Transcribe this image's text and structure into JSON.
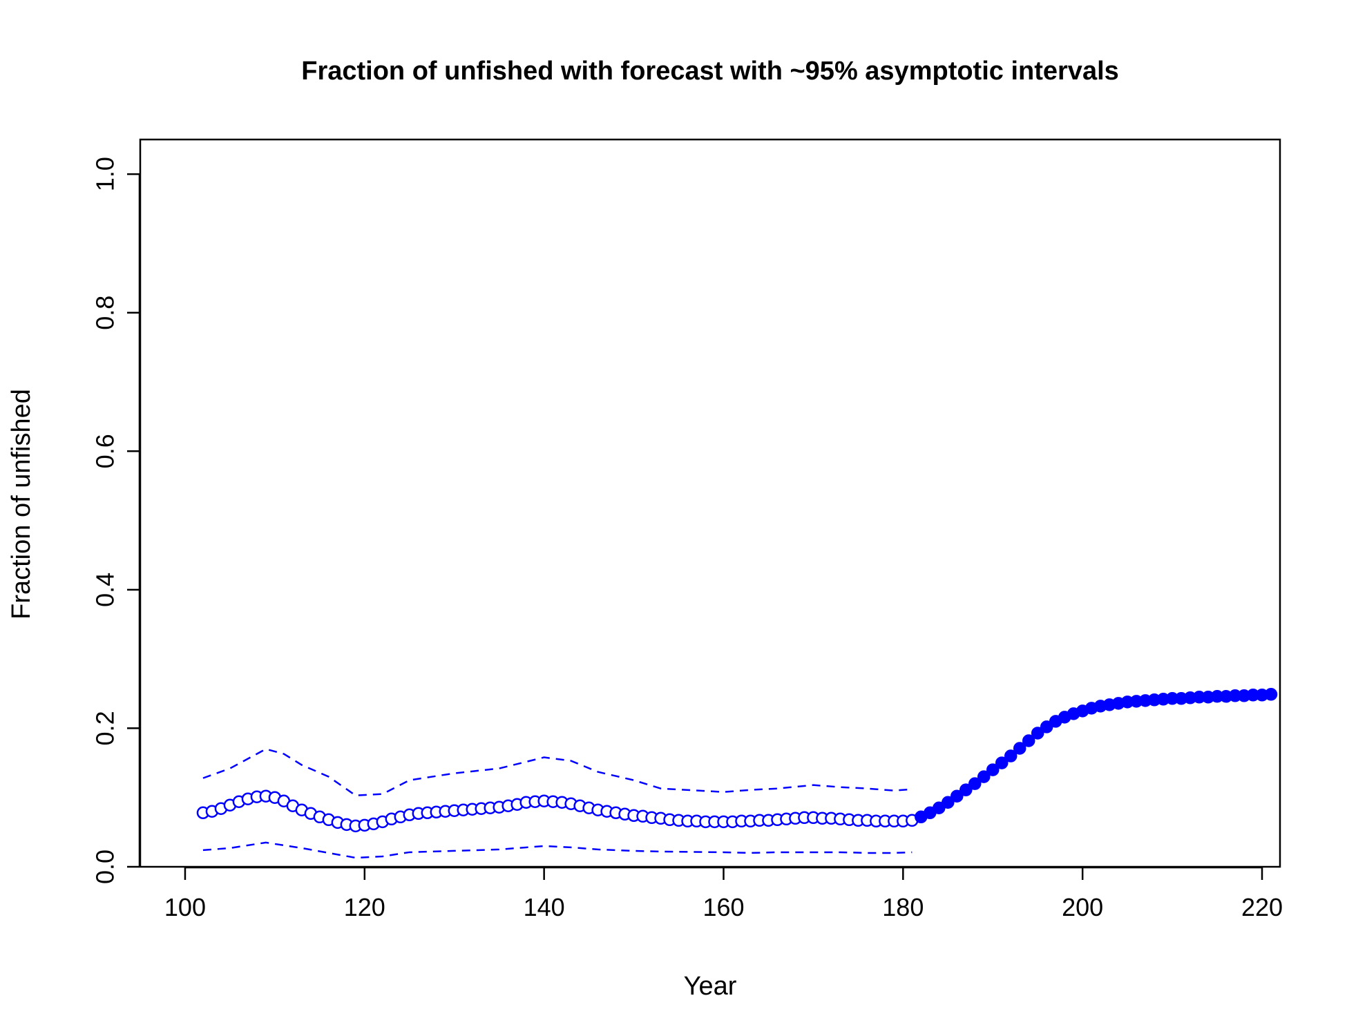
{
  "chart_data": {
    "type": "line",
    "title": "Fraction of unfished with forecast with ~95% asymptotic intervals",
    "xlabel": "Year",
    "ylabel": "Fraction of unfished",
    "xlim": [
      95,
      222
    ],
    "ylim": [
      0,
      1.05
    ],
    "xticks": [
      100,
      120,
      140,
      160,
      180,
      200,
      220
    ],
    "yticks": [
      0.0,
      0.2,
      0.4,
      0.6,
      0.8,
      1.0
    ],
    "xtick_labels": [
      "100",
      "120",
      "140",
      "160",
      "180",
      "200",
      "220"
    ],
    "ytick_labels": [
      "0.0",
      "0.2",
      "0.4",
      "0.6",
      "0.8",
      "1.0"
    ],
    "grid": false,
    "colors": {
      "series": "#0000ff",
      "axes": "#000000"
    },
    "series": [
      {
        "style": "open-circles",
        "x": [
          102,
          103,
          104,
          105,
          106,
          107,
          108,
          109,
          110,
          111,
          112,
          113,
          114,
          115,
          116,
          117,
          118,
          119,
          120,
          121,
          122,
          123,
          124,
          125,
          126,
          127,
          128,
          129,
          130,
          131,
          132,
          133,
          134,
          135,
          136,
          137,
          138,
          139,
          140,
          141,
          142,
          143,
          144,
          145,
          146,
          147,
          148,
          149,
          150,
          151,
          152,
          153,
          154,
          155,
          156,
          157,
          158,
          159,
          160,
          161,
          162,
          163,
          164,
          165,
          166,
          167,
          168,
          169,
          170,
          171,
          172,
          173,
          174,
          175,
          176,
          177,
          178,
          179,
          180,
          181
        ],
        "y": [
          0.078,
          0.08,
          0.084,
          0.089,
          0.094,
          0.098,
          0.101,
          0.102,
          0.1,
          0.095,
          0.088,
          0.082,
          0.077,
          0.072,
          0.068,
          0.064,
          0.061,
          0.059,
          0.06,
          0.062,
          0.065,
          0.069,
          0.072,
          0.075,
          0.077,
          0.078,
          0.079,
          0.08,
          0.081,
          0.082,
          0.083,
          0.084,
          0.085,
          0.086,
          0.088,
          0.09,
          0.093,
          0.094,
          0.095,
          0.094,
          0.093,
          0.091,
          0.088,
          0.085,
          0.082,
          0.08,
          0.078,
          0.076,
          0.074,
          0.073,
          0.071,
          0.07,
          0.068,
          0.067,
          0.066,
          0.066,
          0.065,
          0.065,
          0.065,
          0.065,
          0.066,
          0.066,
          0.067,
          0.067,
          0.068,
          0.069,
          0.07,
          0.071,
          0.071,
          0.07,
          0.07,
          0.069,
          0.068,
          0.067,
          0.067,
          0.066,
          0.066,
          0.066,
          0.066,
          0.067
        ]
      },
      {
        "style": "filled-circles",
        "x": [
          182,
          183,
          184,
          185,
          186,
          187,
          188,
          189,
          190,
          191,
          192,
          193,
          194,
          195,
          196,
          197,
          198,
          199,
          200,
          201,
          202,
          203,
          204,
          205,
          206,
          207,
          208,
          209,
          210,
          211,
          212,
          213,
          214,
          215,
          216,
          217,
          218,
          219,
          220,
          221
        ],
        "y": [
          0.072,
          0.078,
          0.085,
          0.093,
          0.102,
          0.111,
          0.12,
          0.13,
          0.14,
          0.15,
          0.16,
          0.171,
          0.182,
          0.193,
          0.202,
          0.21,
          0.216,
          0.221,
          0.225,
          0.229,
          0.232,
          0.234,
          0.236,
          0.238,
          0.239,
          0.24,
          0.241,
          0.242,
          0.243,
          0.243,
          0.244,
          0.245,
          0.245,
          0.246,
          0.246,
          0.247,
          0.247,
          0.248,
          0.248,
          0.249
        ]
      },
      {
        "style": "dashed-upper",
        "x": [
          102,
          105,
          109,
          111,
          113,
          116,
          119,
          122,
          125,
          130,
          135,
          140,
          143,
          146,
          150,
          153,
          160,
          163,
          166,
          170,
          173,
          176,
          179,
          181
        ],
        "y": [
          0.128,
          0.142,
          0.17,
          0.163,
          0.147,
          0.13,
          0.103,
          0.105,
          0.125,
          0.135,
          0.142,
          0.158,
          0.153,
          0.137,
          0.125,
          0.113,
          0.108,
          0.111,
          0.113,
          0.118,
          0.115,
          0.113,
          0.11,
          0.112
        ]
      },
      {
        "style": "dashed-lower",
        "x": [
          102,
          105,
          109,
          113,
          116,
          119,
          122,
          125,
          130,
          135,
          140,
          143,
          146,
          150,
          153,
          160,
          163,
          166,
          170,
          173,
          176,
          179,
          181
        ],
        "y": [
          0.024,
          0.027,
          0.035,
          0.027,
          0.02,
          0.013,
          0.015,
          0.021,
          0.023,
          0.025,
          0.03,
          0.028,
          0.025,
          0.023,
          0.022,
          0.021,
          0.02,
          0.021,
          0.021,
          0.021,
          0.02,
          0.02,
          0.021
        ]
      }
    ]
  }
}
